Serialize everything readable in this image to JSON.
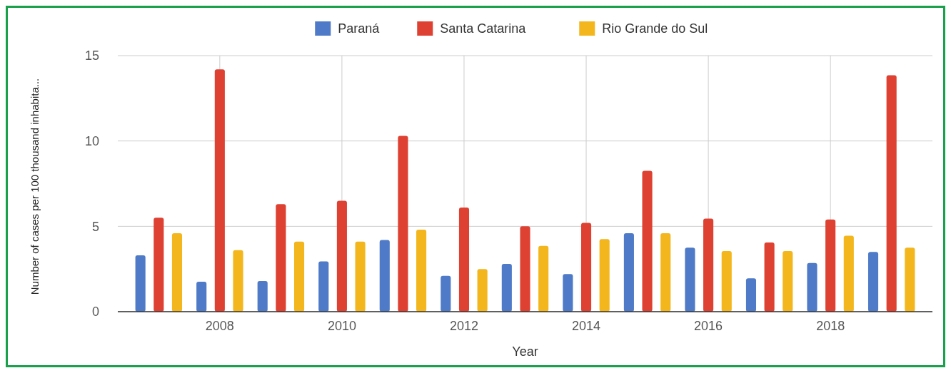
{
  "chart_data": {
    "type": "bar",
    "xlabel": "Year",
    "ylabel": "Number of cases per 100 thousand inhabita...",
    "x": [
      2007,
      2008,
      2009,
      2010,
      2011,
      2012,
      2013,
      2014,
      2015,
      2016,
      2017,
      2018,
      2019
    ],
    "xlim": [
      2006.33,
      2019.67
    ],
    "xticks": [
      2008,
      2010,
      2012,
      2014,
      2016,
      2018
    ],
    "ylim": [
      0,
      15
    ],
    "yticks": [
      0,
      5,
      10,
      15
    ],
    "grid": true,
    "legend": "top",
    "series": [
      {
        "name": "Paraná",
        "color": "#4e7ac7",
        "values": [
          3.3,
          1.75,
          1.8,
          2.95,
          4.2,
          2.1,
          2.8,
          2.2,
          4.6,
          3.75,
          1.95,
          2.85,
          3.5
        ]
      },
      {
        "name": "Santa Catarina",
        "color": "#de4132",
        "values": [
          5.5,
          14.2,
          6.3,
          6.5,
          10.3,
          6.1,
          5.0,
          5.2,
          8.25,
          5.45,
          4.05,
          5.4,
          13.85
        ]
      },
      {
        "name": "Rio Grande do Sul",
        "color": "#f3b61c",
        "values": [
          4.6,
          3.6,
          4.1,
          4.1,
          4.8,
          2.5,
          3.85,
          4.25,
          4.6,
          3.55,
          3.55,
          4.45,
          3.75
        ]
      }
    ]
  }
}
